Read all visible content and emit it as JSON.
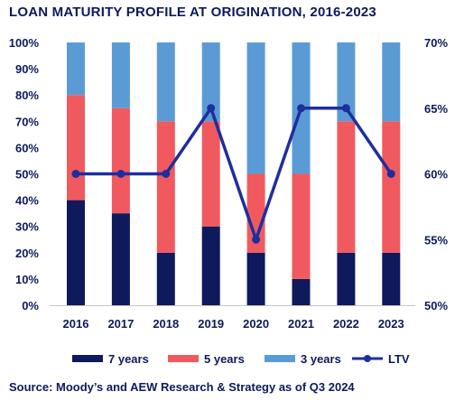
{
  "chart_data": {
    "type": "bar",
    "title": "LOAN MATURITY PROFILE AT ORIGINATION, 2016-2023",
    "categories": [
      "2016",
      "2017",
      "2018",
      "2019",
      "2020",
      "2021",
      "2022",
      "2023"
    ],
    "stacked": true,
    "series": [
      {
        "name": "7 years",
        "type": "bar",
        "axis": "left",
        "color": "#0e1a5c",
        "values": [
          40,
          35,
          20,
          30,
          20,
          10,
          20,
          20
        ]
      },
      {
        "name": "5 years",
        "type": "bar",
        "axis": "left",
        "color": "#f05a5f",
        "values": [
          40,
          40,
          50,
          40,
          30,
          40,
          50,
          50
        ]
      },
      {
        "name": "3 years",
        "type": "bar",
        "axis": "left",
        "color": "#5b9bd5",
        "values": [
          20,
          25,
          30,
          30,
          50,
          50,
          30,
          30
        ]
      },
      {
        "name": "LTV",
        "type": "line",
        "axis": "right",
        "color": "#1d2f9e",
        "values": [
          60,
          60,
          60,
          65,
          55,
          65,
          65,
          60
        ]
      }
    ],
    "y_left": {
      "ylim": [
        0,
        100
      ],
      "ticks": [
        0,
        10,
        20,
        30,
        40,
        50,
        60,
        70,
        80,
        90,
        100
      ],
      "tick_labels": [
        "0%",
        "10%",
        "20%",
        "30%",
        "40%",
        "50%",
        "60%",
        "70%",
        "80%",
        "90%",
        "100%"
      ]
    },
    "y_right": {
      "ylim": [
        50,
        70
      ],
      "ticks": [
        50,
        55,
        60,
        65,
        70
      ],
      "tick_labels": [
        "50%",
        "55%",
        "60%",
        "65%",
        "70%"
      ]
    },
    "grid": false,
    "legend_position": "bottom",
    "source": "Source: Moody’s and AEW Research & Strategy as of Q3 2024"
  }
}
